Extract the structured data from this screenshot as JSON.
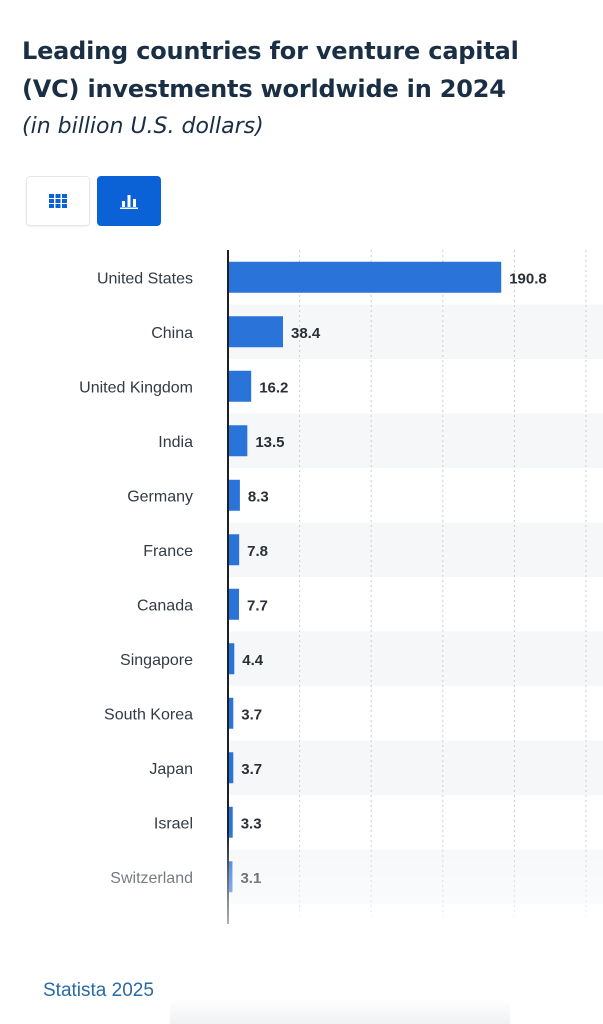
{
  "header": {
    "title": "Leading countries for venture capital (VC) investments worldwide in 2024",
    "subtitle": "(in billion U.S. dollars)"
  },
  "view_toggle": {
    "table_icon": "grid-icon",
    "chart_icon": "bar-chart-icon",
    "active": "chart",
    "accent_color": "#0b62d7"
  },
  "chart_data": {
    "type": "bar",
    "orientation": "horizontal",
    "title": "Leading countries for venture capital (VC) investments worldwide in 2024",
    "subtitle": "(in billion U.S. dollars)",
    "categories": [
      "United States",
      "China",
      "United Kingdom",
      "India",
      "Germany",
      "France",
      "Canada",
      "Singapore",
      "South Korea",
      "Japan",
      "Israel",
      "Switzerland"
    ],
    "values": [
      190.8,
      38.4,
      16.2,
      13.5,
      8.3,
      7.8,
      7.7,
      4.4,
      3.7,
      3.7,
      3.3,
      3.1
    ],
    "data_labels": [
      "190.8",
      "38.4",
      "16.2",
      "13.5",
      "8.3",
      "7.8",
      "7.7",
      "4.4",
      "3.7",
      "3.7",
      "3.3",
      "3.1"
    ],
    "xlim": [
      0,
      250
    ],
    "xgrid_step": 50,
    "grid": true,
    "bar_color": "#2a73d9",
    "legend": "none"
  },
  "footer": {
    "source": "Statista 2025"
  }
}
